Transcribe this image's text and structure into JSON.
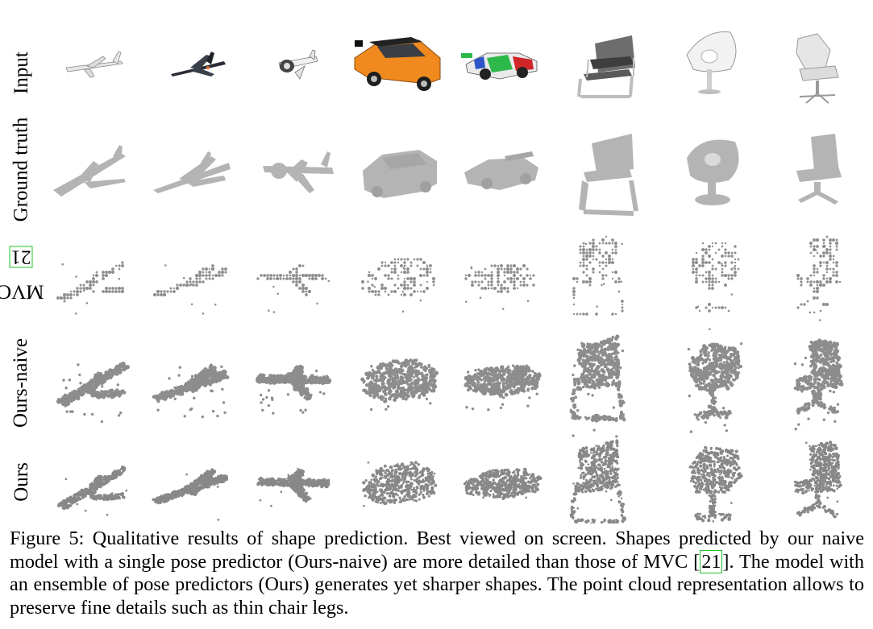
{
  "figure": {
    "row_labels": [
      {
        "text": "Input"
      },
      {
        "text": "Ground truth"
      },
      {
        "text": "MVC ",
        "cite": "21"
      },
      {
        "text": "Ours-naive"
      },
      {
        "text": "Ours"
      }
    ],
    "columns": [
      "airplane",
      "fighter-jet",
      "propeller-plane",
      "hatchback-car",
      "race-car",
      "office-chair",
      "round-chair",
      "swivel-chair"
    ],
    "palette": {
      "gt_gray": "#b4b4b4",
      "point_gray": "#8a8a8a",
      "orange_car": "#f08a1e",
      "cite_green": "#22c32b"
    }
  },
  "caption": {
    "p1": "Figure 5:  Qualitative results of shape prediction. Best viewed on screen. Shapes predicted by our naive model with a single pose predictor (Ours-naive) are more detailed than those of MVC [",
    "cite": "21",
    "p2": "]. The model with an ensemble of pose predictors (Ours) generates yet sharper shapes. The point cloud representation allows to preserve fine details such as thin chair legs."
  }
}
